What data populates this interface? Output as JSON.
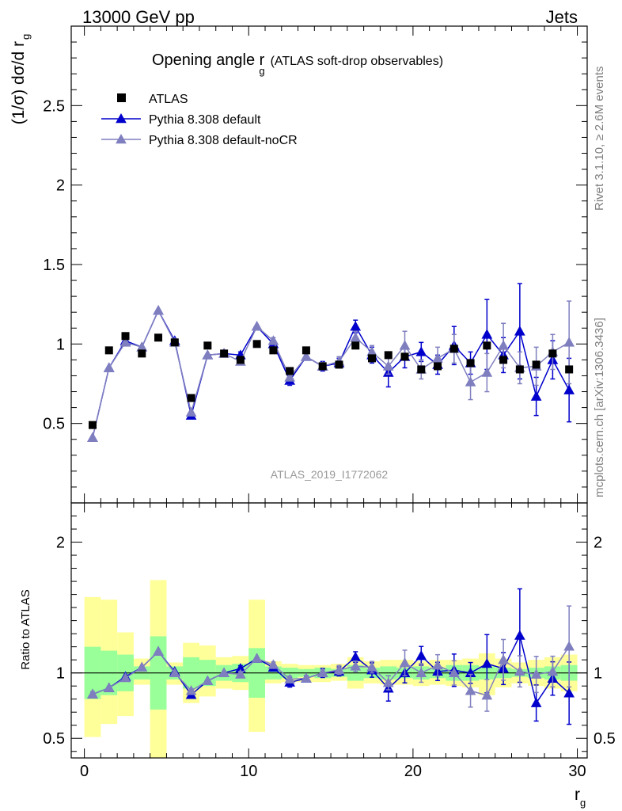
{
  "header": {
    "left": "13000 GeV pp",
    "right": "Jets"
  },
  "title": {
    "main": "Opening angle r",
    "sub": "g",
    "suffix": "(ATLAS soft-drop observables)"
  },
  "side_label_top": "Rivet 3.1.10, ≥ 2.6M events",
  "side_label_bottom": "mcplots.cern.ch [arXiv:1306.3436]",
  "watermark": "ATLAS_2019_I1772062",
  "colors": {
    "data": "#000000",
    "mc1": "#0000cc",
    "mc2": "#7f7fbf",
    "band_outer": "#ffff99",
    "band_inner": "#99ff99",
    "watermark": "#999999"
  },
  "legend": [
    {
      "key": "data",
      "label": "ATLAS"
    },
    {
      "key": "mc1",
      "label": "Pythia 8.308 default"
    },
    {
      "key": "mc2",
      "label": "Pythia 8.308 default-noCR"
    }
  ],
  "chart_data": {
    "type": "scatter",
    "xlabel_main": "r",
    "xlabel_sub": "g",
    "ylabel_main": {
      "pre": "(1/σ) dσ/d r",
      "sub": "g"
    },
    "ylabel_ratio": "Ratio to ATLAS",
    "xlim": [
      -0.8,
      30.6
    ],
    "ylim_main": [
      0,
      3.0
    ],
    "ylim_ratio": [
      0.35,
      2.3
    ],
    "xticks": [
      0,
      10,
      20,
      30
    ],
    "yticks_main": [
      "0.5",
      "1",
      "1.5",
      "2",
      "2.5"
    ],
    "yticks_ratio": [
      "0.5",
      "1",
      "2"
    ],
    "grid": false,
    "legend_position": "top-left",
    "x": [
      0.5,
      1.5,
      2.5,
      3.5,
      4.5,
      5.5,
      6.5,
      7.5,
      8.5,
      9.5,
      10.5,
      11.5,
      12.5,
      13.5,
      14.5,
      15.5,
      16.5,
      17.5,
      18.5,
      19.5,
      20.5,
      21.5,
      22.5,
      23.5,
      24.5,
      25.5,
      26.5,
      27.5,
      28.5,
      29.5
    ],
    "series": [
      {
        "name": "ATLAS",
        "key": "data",
        "values": [
          0.49,
          0.96,
          1.05,
          0.94,
          1.04,
          1.01,
          0.66,
          0.99,
          0.94,
          0.9,
          1.0,
          0.96,
          0.83,
          0.96,
          0.86,
          0.87,
          0.99,
          0.91,
          0.93,
          0.92,
          0.84,
          0.86,
          0.97,
          0.88,
          0.99,
          0.9,
          0.84,
          0.87,
          0.94,
          0.84
        ]
      },
      {
        "name": "Pythia 8.308 default",
        "key": "mc1",
        "values": [
          0.41,
          0.85,
          1.02,
          0.98,
          1.21,
          1.02,
          0.55,
          0.93,
          0.94,
          0.93,
          1.11,
          1.0,
          0.77,
          0.92,
          0.86,
          0.88,
          1.11,
          0.93,
          0.82,
          0.92,
          0.95,
          0.87,
          0.99,
          0.88,
          1.06,
          0.93,
          1.08,
          0.67,
          0.9,
          0.71
        ],
        "errors": [
          0.01,
          0.01,
          0.01,
          0.01,
          0.01,
          0.01,
          0.01,
          0.01,
          0.01,
          0.02,
          0.01,
          0.02,
          0.03,
          0.02,
          0.03,
          0.03,
          0.04,
          0.05,
          0.09,
          0.07,
          0.06,
          0.06,
          0.12,
          0.07,
          0.22,
          0.11,
          0.3,
          0.12,
          0.12,
          0.2
        ]
      },
      {
        "name": "Pythia 8.308 default-noCR",
        "key": "mc2",
        "values": [
          0.41,
          0.85,
          1.01,
          0.98,
          1.21,
          1.01,
          0.57,
          0.93,
          0.94,
          0.89,
          1.11,
          1.02,
          0.79,
          0.92,
          0.86,
          0.89,
          1.04,
          0.95,
          0.86,
          0.99,
          0.84,
          0.91,
          0.97,
          0.76,
          0.82,
          0.99,
          0.85,
          0.86,
          0.95,
          1.01
        ],
        "errors": [
          0.01,
          0.01,
          0.01,
          0.01,
          0.01,
          0.01,
          0.01,
          0.01,
          0.01,
          0.02,
          0.01,
          0.02,
          0.02,
          0.02,
          0.02,
          0.03,
          0.04,
          0.04,
          0.05,
          0.09,
          0.06,
          0.07,
          0.09,
          0.11,
          0.12,
          0.14,
          0.1,
          0.12,
          0.11,
          0.26
        ]
      }
    ],
    "ratio_band_inner": [
      [
        0.8,
        1.2
      ],
      [
        0.83,
        1.17
      ],
      [
        0.86,
        1.14
      ],
      [
        0.95,
        1.05
      ],
      [
        0.72,
        1.28
      ],
      [
        0.95,
        1.05
      ],
      [
        0.88,
        1.12
      ],
      [
        0.9,
        1.1
      ],
      [
        0.94,
        1.06
      ],
      [
        0.93,
        1.07
      ],
      [
        0.81,
        1.19
      ],
      [
        0.95,
        1.05
      ],
      [
        0.96,
        1.04
      ],
      [
        0.97,
        1.03
      ],
      [
        0.96,
        1.04
      ],
      [
        0.97,
        1.03
      ],
      [
        0.94,
        1.06
      ],
      [
        0.96,
        1.04
      ],
      [
        0.95,
        1.05
      ],
      [
        0.96,
        1.04
      ],
      [
        0.95,
        1.05
      ],
      [
        0.96,
        1.04
      ],
      [
        0.94,
        1.06
      ],
      [
        0.94,
        1.06
      ],
      [
        0.95,
        1.05
      ],
      [
        0.96,
        1.04
      ],
      [
        0.97,
        1.03
      ],
      [
        0.96,
        1.04
      ],
      [
        0.95,
        1.05
      ],
      [
        0.94,
        1.06
      ]
    ],
    "ratio_band_outer": [
      [
        0.51,
        1.58
      ],
      [
        0.61,
        1.56
      ],
      [
        0.67,
        1.31
      ],
      [
        0.91,
        1.11
      ],
      [
        0.32,
        1.71
      ],
      [
        0.91,
        1.08
      ],
      [
        0.77,
        1.23
      ],
      [
        0.82,
        1.21
      ],
      [
        0.88,
        1.12
      ],
      [
        0.87,
        1.13
      ],
      [
        0.55,
        1.56
      ],
      [
        0.92,
        1.09
      ],
      [
        0.93,
        1.07
      ],
      [
        0.93,
        1.06
      ],
      [
        0.93,
        1.06
      ],
      [
        0.94,
        1.07
      ],
      [
        0.88,
        1.12
      ],
      [
        0.92,
        1.09
      ],
      [
        0.91,
        1.1
      ],
      [
        0.91,
        1.1
      ],
      [
        0.9,
        1.09
      ],
      [
        0.91,
        1.1
      ],
      [
        0.9,
        1.1
      ],
      [
        0.89,
        1.11
      ],
      [
        0.83,
        1.15
      ],
      [
        0.89,
        1.11
      ],
      [
        0.92,
        1.08
      ],
      [
        0.9,
        1.1
      ],
      [
        0.88,
        1.12
      ],
      [
        0.86,
        1.14
      ]
    ]
  }
}
